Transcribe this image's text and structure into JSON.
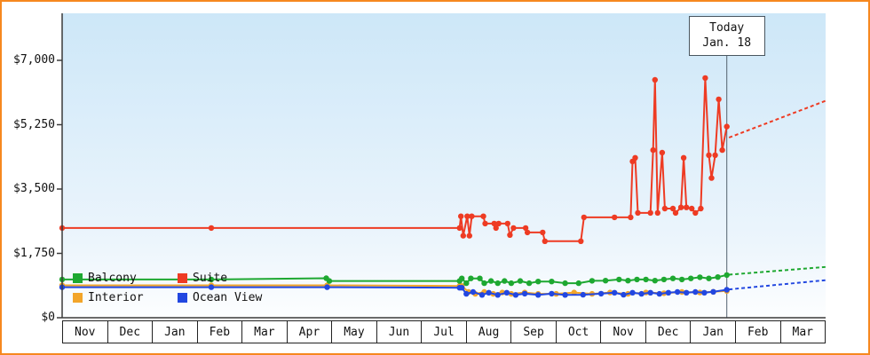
{
  "chart_data": {
    "type": "line",
    "x_categories": [
      "Nov",
      "Dec",
      "Jan",
      "Feb",
      "Mar",
      "Apr",
      "May",
      "Jun",
      "Jul",
      "Aug",
      "Sep",
      "Oct",
      "Nov",
      "Dec",
      "Jan",
      "Feb",
      "Mar"
    ],
    "y_ticks": [
      {
        "label": "$0",
        "value": 0
      },
      {
        "label": "$1,750",
        "value": 1750
      },
      {
        "label": "$3,500",
        "value": 3500
      },
      {
        "label": "$5,250",
        "value": 5250
      },
      {
        "label": "$7,000",
        "value": 7000
      }
    ],
    "ylim": [
      0,
      8200
    ],
    "grid": false,
    "legend_position": "bottom-left",
    "today": {
      "line1": "Today",
      "line2": "Jan. 18",
      "x": 14.8
    },
    "colors": {
      "balcony": "#1ea831",
      "suite": "#ee3b23",
      "interior": "#f2a52a",
      "ocean_view": "#2247e0",
      "frame_border": "#f6881f",
      "background_top": "#cde7f8"
    },
    "legend": [
      {
        "label": "Balcony",
        "color": "#1ea831"
      },
      {
        "label": "Suite",
        "color": "#ee3b23"
      },
      {
        "label": "Interior",
        "color": "#f2a52a"
      },
      {
        "label": "Ocean View",
        "color": "#2247e0"
      }
    ],
    "series": [
      {
        "name": "Interior",
        "color": "#f2a52a",
        "points": [
          [
            0,
            880
          ],
          [
            3.32,
            880
          ],
          [
            5.9,
            880
          ],
          [
            8.85,
            865
          ],
          [
            8.9,
            865
          ],
          [
            9.05,
            700
          ],
          [
            9.2,
            650
          ],
          [
            9.4,
            700
          ],
          [
            9.6,
            650
          ],
          [
            9.8,
            685
          ],
          [
            10.0,
            650
          ],
          [
            10.3,
            685
          ],
          [
            10.6,
            650
          ],
          [
            11.0,
            650
          ],
          [
            11.4,
            685
          ],
          [
            11.8,
            650
          ],
          [
            12.2,
            685
          ],
          [
            12.6,
            650
          ],
          [
            13.0,
            685
          ],
          [
            13.4,
            665
          ],
          [
            13.8,
            700
          ],
          [
            14.2,
            685
          ],
          [
            14.5,
            705
          ],
          [
            14.8,
            730
          ]
        ]
      },
      {
        "name": "Ocean View",
        "color": "#2247e0",
        "points": [
          [
            0,
            830
          ],
          [
            3.32,
            830
          ],
          [
            5.9,
            830
          ],
          [
            8.85,
            815
          ],
          [
            8.9,
            815
          ],
          [
            9.0,
            650
          ],
          [
            9.15,
            700
          ],
          [
            9.35,
            620
          ],
          [
            9.5,
            680
          ],
          [
            9.7,
            620
          ],
          [
            9.9,
            680
          ],
          [
            10.1,
            620
          ],
          [
            10.3,
            655
          ],
          [
            10.6,
            620
          ],
          [
            10.9,
            655
          ],
          [
            11.2,
            620
          ],
          [
            11.6,
            625
          ],
          [
            12.0,
            655
          ],
          [
            12.3,
            680
          ],
          [
            12.5,
            625
          ],
          [
            12.7,
            680
          ],
          [
            12.9,
            650
          ],
          [
            13.1,
            680
          ],
          [
            13.3,
            650
          ],
          [
            13.5,
            680
          ],
          [
            13.7,
            700
          ],
          [
            13.9,
            680
          ],
          [
            14.1,
            700
          ],
          [
            14.3,
            680
          ],
          [
            14.5,
            705
          ],
          [
            14.8,
            760
          ]
        ],
        "projection": [
          [
            14.85,
            770
          ],
          [
            17,
            1020
          ]
        ]
      },
      {
        "name": "Balcony",
        "color": "#1ea831",
        "points": [
          [
            0,
            1040
          ],
          [
            3.32,
            1040
          ],
          [
            5.88,
            1075
          ],
          [
            5.95,
            1000
          ],
          [
            8.85,
            1000
          ],
          [
            8.9,
            1070
          ],
          [
            9.0,
            940
          ],
          [
            9.1,
            1070
          ],
          [
            9.3,
            1070
          ],
          [
            9.4,
            940
          ],
          [
            9.55,
            1000
          ],
          [
            9.7,
            940
          ],
          [
            9.85,
            1000
          ],
          [
            10.0,
            940
          ],
          [
            10.2,
            1000
          ],
          [
            10.4,
            940
          ],
          [
            10.6,
            985
          ],
          [
            10.9,
            985
          ],
          [
            11.2,
            940
          ],
          [
            11.5,
            940
          ],
          [
            11.8,
            1005
          ],
          [
            12.1,
            1010
          ],
          [
            12.4,
            1040
          ],
          [
            12.6,
            1010
          ],
          [
            12.8,
            1040
          ],
          [
            13.0,
            1040
          ],
          [
            13.2,
            1010
          ],
          [
            13.4,
            1040
          ],
          [
            13.6,
            1070
          ],
          [
            13.8,
            1040
          ],
          [
            14.0,
            1070
          ],
          [
            14.2,
            1100
          ],
          [
            14.4,
            1070
          ],
          [
            14.6,
            1105
          ],
          [
            14.8,
            1160
          ]
        ],
        "projection": [
          [
            14.85,
            1170
          ],
          [
            17,
            1380
          ]
        ]
      },
      {
        "name": "Suite",
        "color": "#ee3b23",
        "points": [
          [
            0,
            2440
          ],
          [
            3.32,
            2440
          ],
          [
            8.85,
            2440
          ],
          [
            8.88,
            2760
          ],
          [
            8.93,
            2230
          ],
          [
            9.02,
            2760
          ],
          [
            9.07,
            2230
          ],
          [
            9.12,
            2760
          ],
          [
            9.38,
            2760
          ],
          [
            9.42,
            2560
          ],
          [
            9.62,
            2560
          ],
          [
            9.66,
            2440
          ],
          [
            9.72,
            2560
          ],
          [
            9.92,
            2560
          ],
          [
            9.97,
            2250
          ],
          [
            10.05,
            2440
          ],
          [
            10.32,
            2440
          ],
          [
            10.36,
            2320
          ],
          [
            10.7,
            2320
          ],
          [
            10.75,
            2080
          ],
          [
            11.55,
            2080
          ],
          [
            11.62,
            2730
          ],
          [
            12.3,
            2730
          ],
          [
            12.66,
            2730
          ],
          [
            12.7,
            4250
          ],
          [
            12.76,
            4350
          ],
          [
            12.82,
            2850
          ],
          [
            13.1,
            2850
          ],
          [
            13.16,
            4560
          ],
          [
            13.2,
            6470
          ],
          [
            13.26,
            2850
          ],
          [
            13.36,
            4490
          ],
          [
            13.42,
            2970
          ],
          [
            13.6,
            2970
          ],
          [
            13.66,
            2850
          ],
          [
            13.78,
            3000
          ],
          [
            13.84,
            4350
          ],
          [
            13.9,
            3000
          ],
          [
            14.02,
            2970
          ],
          [
            14.1,
            2850
          ],
          [
            14.22,
            2970
          ],
          [
            14.32,
            6520
          ],
          [
            14.4,
            4420
          ],
          [
            14.46,
            3800
          ],
          [
            14.54,
            4420
          ],
          [
            14.62,
            5940
          ],
          [
            14.7,
            4560
          ],
          [
            14.8,
            5200
          ]
        ],
        "projection": [
          [
            14.85,
            4900
          ],
          [
            17,
            5900
          ]
        ]
      }
    ]
  }
}
